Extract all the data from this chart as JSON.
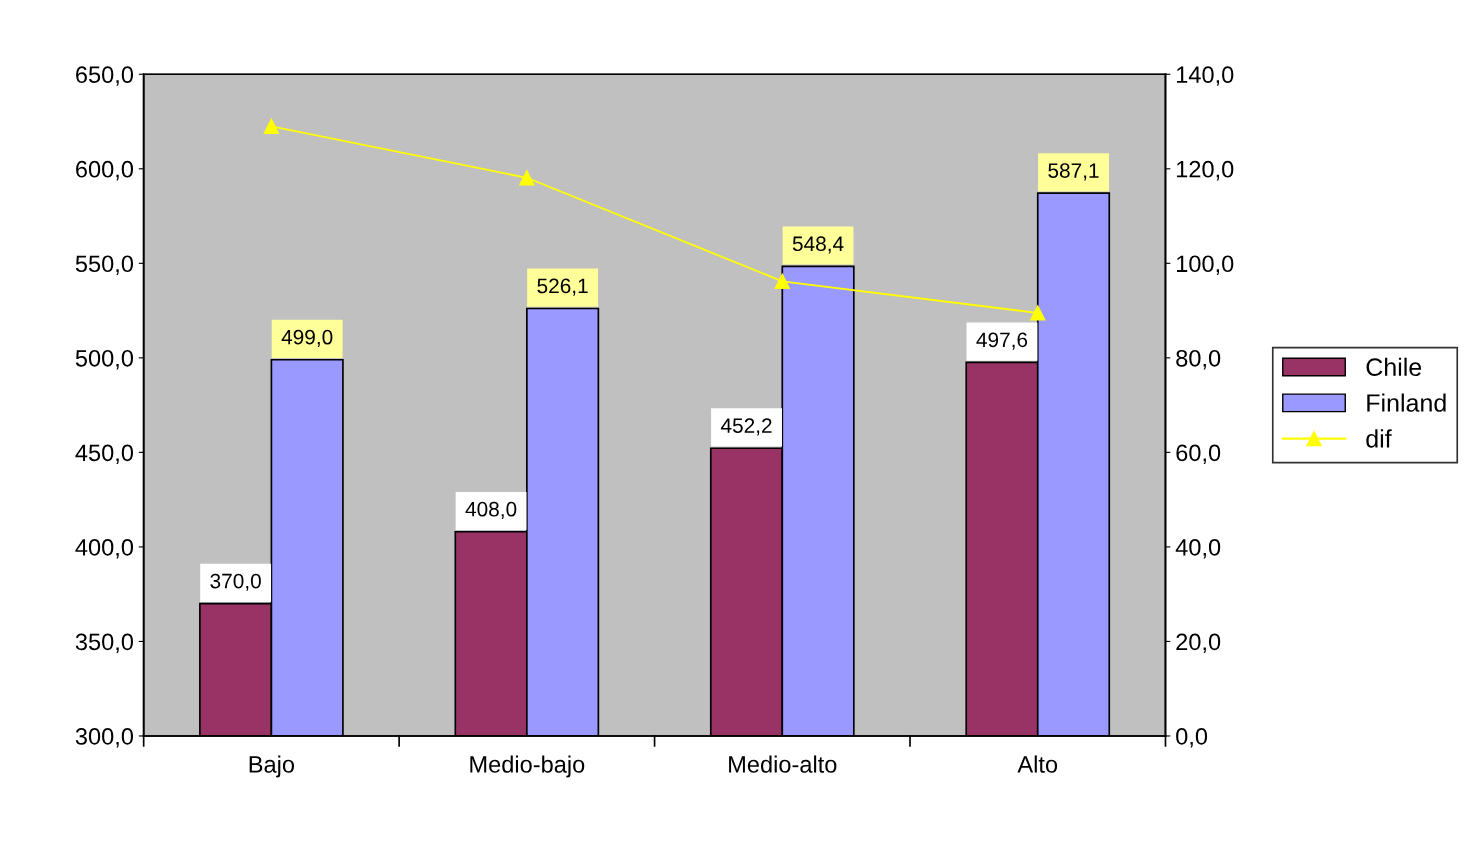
{
  "chart_data": {
    "type": "bar",
    "categories": [
      "Bajo",
      "Medio-bajo",
      "Medio-alto",
      "Alto"
    ],
    "series": [
      {
        "name": "Chile",
        "color": "#993366",
        "values": [
          370.0,
          408.0,
          452.2,
          497.6
        ],
        "value_labels": [
          "370,0",
          "408,0",
          "452,2",
          "497,6"
        ]
      },
      {
        "name": "Finland",
        "color": "#9999ff",
        "values": [
          499.0,
          526.1,
          548.4,
          587.1
        ],
        "value_labels": [
          "499,0",
          "526,1",
          "548,4",
          "587,1"
        ]
      },
      {
        "name": "dif",
        "type": "line",
        "axis": "y2",
        "color": "#ffff00",
        "marker": "triangle",
        "values": [
          129.0,
          118.1,
          96.2,
          89.5
        ]
      }
    ],
    "ylim": [
      300,
      650
    ],
    "yticks": [
      {
        "value": 300,
        "label": "300,0"
      },
      {
        "value": 350,
        "label": "350,0"
      },
      {
        "value": 400,
        "label": "400,0"
      },
      {
        "value": 450,
        "label": "450,0"
      },
      {
        "value": 500,
        "label": "500,0"
      },
      {
        "value": 550,
        "label": "550,0"
      },
      {
        "value": 600,
        "label": "600,0"
      },
      {
        "value": 650,
        "label": "650,0"
      }
    ],
    "y2lim": [
      0,
      140
    ],
    "y2ticks": [
      {
        "value": 0,
        "label": "0,0"
      },
      {
        "value": 20,
        "label": "20,0"
      },
      {
        "value": 40,
        "label": "40,0"
      },
      {
        "value": 60,
        "label": "60,0"
      },
      {
        "value": 80,
        "label": "80,0"
      },
      {
        "value": 100,
        "label": "100,0"
      },
      {
        "value": 120,
        "label": "120,0"
      },
      {
        "value": 140,
        "label": "140,0"
      }
    ],
    "grid": false,
    "legend": "right"
  }
}
